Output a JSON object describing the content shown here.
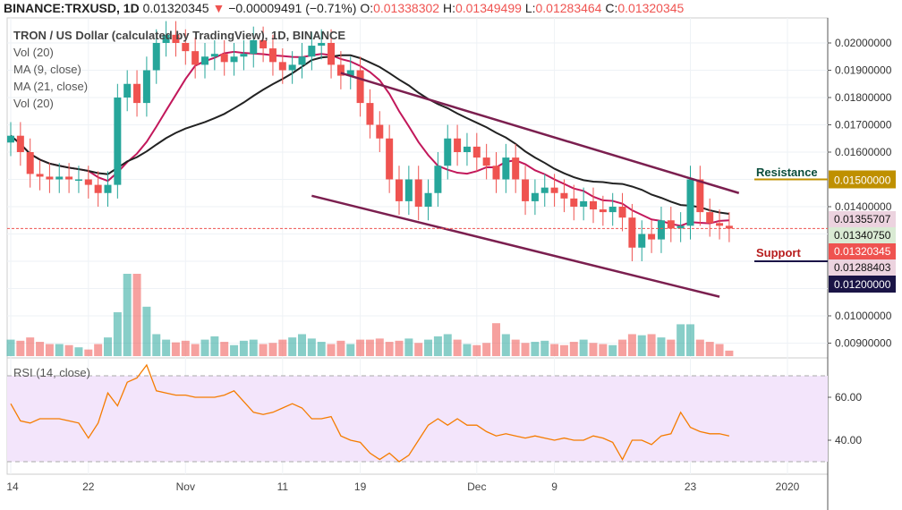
{
  "header": {
    "symbol": "BINANCE:TRXUSD, 1D",
    "last": "0.01320345",
    "arrow": "▼",
    "change": "−0.00009491 (−0.71%)",
    "o_label": "O:",
    "o": "0.01338302",
    "h_label": "H:",
    "h": "0.01349499",
    "l_label": "L:",
    "l": "0.01283464",
    "c_label": "C:",
    "c": "0.01320345"
  },
  "legend": [
    "TRON / US Dollar (calculated by TradingView), 1D, BINANCE",
    "Vol (20)",
    "MA (9, close)",
    "MA (21, close)",
    "Vol (20)"
  ],
  "rsi_label": "RSI (14, close)",
  "colors": {
    "up": "#26a69a",
    "down": "#ef5350",
    "ma9": "#c2185b",
    "ma21": "#222222",
    "channel": "#7b1f4f",
    "resistance": "#bf9000",
    "support": "#1a1446",
    "rsi": "#f57c00",
    "rsi_bg": "#f3e5fb"
  },
  "chart_data": {
    "type": "candlestick",
    "start_date": "Oct 14",
    "ylim": [
      0.0085,
      0.0205
    ],
    "price_ticks": [
      "0.02000000",
      "0.01900000",
      "0.01800000",
      "0.01700000",
      "0.01600000",
      "0.01400000",
      "0.01000000",
      "0.00900000"
    ],
    "x_ticks": [
      "14",
      "22",
      "Nov",
      "11",
      "19",
      "Dec",
      "9",
      "23",
      "2020"
    ],
    "closes": [
      0.0166,
      0.016,
      0.0152,
      0.0151,
      0.015,
      0.0151,
      0.015,
      0.015,
      0.0148,
      0.0145,
      0.0148,
      0.018,
      0.0185,
      0.0178,
      0.019,
      0.02,
      0.0203,
      0.02,
      0.0197,
      0.0192,
      0.0195,
      0.0196,
      0.0193,
      0.0195,
      0.0196,
      0.0201,
      0.0198,
      0.0193,
      0.019,
      0.0192,
      0.0195,
      0.0199,
      0.02,
      0.0192,
      0.0188,
      0.019,
      0.0178,
      0.017,
      0.0165,
      0.015,
      0.0142,
      0.015,
      0.014,
      0.0145,
      0.0155,
      0.0165,
      0.016,
      0.0162,
      0.0158,
      0.0155,
      0.015,
      0.0158,
      0.015,
      0.0142,
      0.0145,
      0.0147,
      0.0145,
      0.0143,
      0.014,
      0.0142,
      0.0139,
      0.0138,
      0.014,
      0.0136,
      0.0125,
      0.013,
      0.0128,
      0.0135,
      0.0132,
      0.0133,
      0.015,
      0.0138,
      0.0134,
      0.0133,
      0.0132
    ],
    "volumes": [
      30,
      28,
      34,
      26,
      22,
      22,
      20,
      16,
      12,
      22,
      34,
      80,
      150,
      150,
      90,
      40,
      30,
      25,
      28,
      22,
      30,
      36,
      26,
      20,
      28,
      30,
      22,
      24,
      30,
      34,
      40,
      32,
      26,
      22,
      28,
      22,
      30,
      30,
      32,
      26,
      28,
      32,
      24,
      30,
      36,
      40,
      30,
      22,
      20,
      24,
      60,
      40,
      30,
      24,
      26,
      28,
      22,
      20,
      26,
      30,
      24,
      22,
      20,
      30,
      40,
      38,
      40,
      34,
      30,
      58,
      58,
      30,
      26,
      22,
      10
    ],
    "rsi": [
      57,
      49,
      48,
      50,
      50,
      50,
      49,
      48,
      41,
      48,
      62,
      56,
      67,
      69,
      75,
      63,
      62,
      61,
      61,
      60,
      60,
      60,
      61,
      63,
      58,
      53,
      52,
      53,
      55,
      57,
      55,
      50,
      50,
      51,
      42,
      40,
      39,
      34,
      31,
      34,
      30,
      33,
      40,
      47,
      50,
      47,
      50,
      47,
      47,
      44,
      42,
      43,
      42,
      41,
      42,
      41,
      40,
      41,
      40,
      40,
      42,
      41,
      39,
      31,
      40,
      40,
      38,
      42,
      43,
      53,
      46,
      44,
      43,
      43,
      42
    ],
    "rsi_ticks": [
      "60.00",
      "40.00"
    ],
    "channel": [
      {
        "from": [
          34,
          0.0189
        ],
        "to": [
          75,
          0.0145
        ]
      },
      {
        "from": [
          31,
          0.0144
        ],
        "to": [
          73,
          0.0107
        ]
      }
    ],
    "resistance": {
      "label": "Resistance",
      "value": "0.01500000",
      "price": 0.015
    },
    "support": {
      "label": "Support",
      "value": "0.01200000",
      "price": 0.0121
    },
    "price_labels": [
      {
        "value": "0.01355707",
        "bg": "#ecd3df",
        "fg": "#111"
      },
      {
        "value": "0.01340750",
        "bg": "#d9ead3",
        "fg": "#111"
      },
      {
        "value": "0.01320345",
        "bg": "#ef5350",
        "fg": "#fff"
      },
      {
        "value": "0.01288403",
        "bg": "#ecd3df",
        "fg": "#111"
      }
    ]
  }
}
